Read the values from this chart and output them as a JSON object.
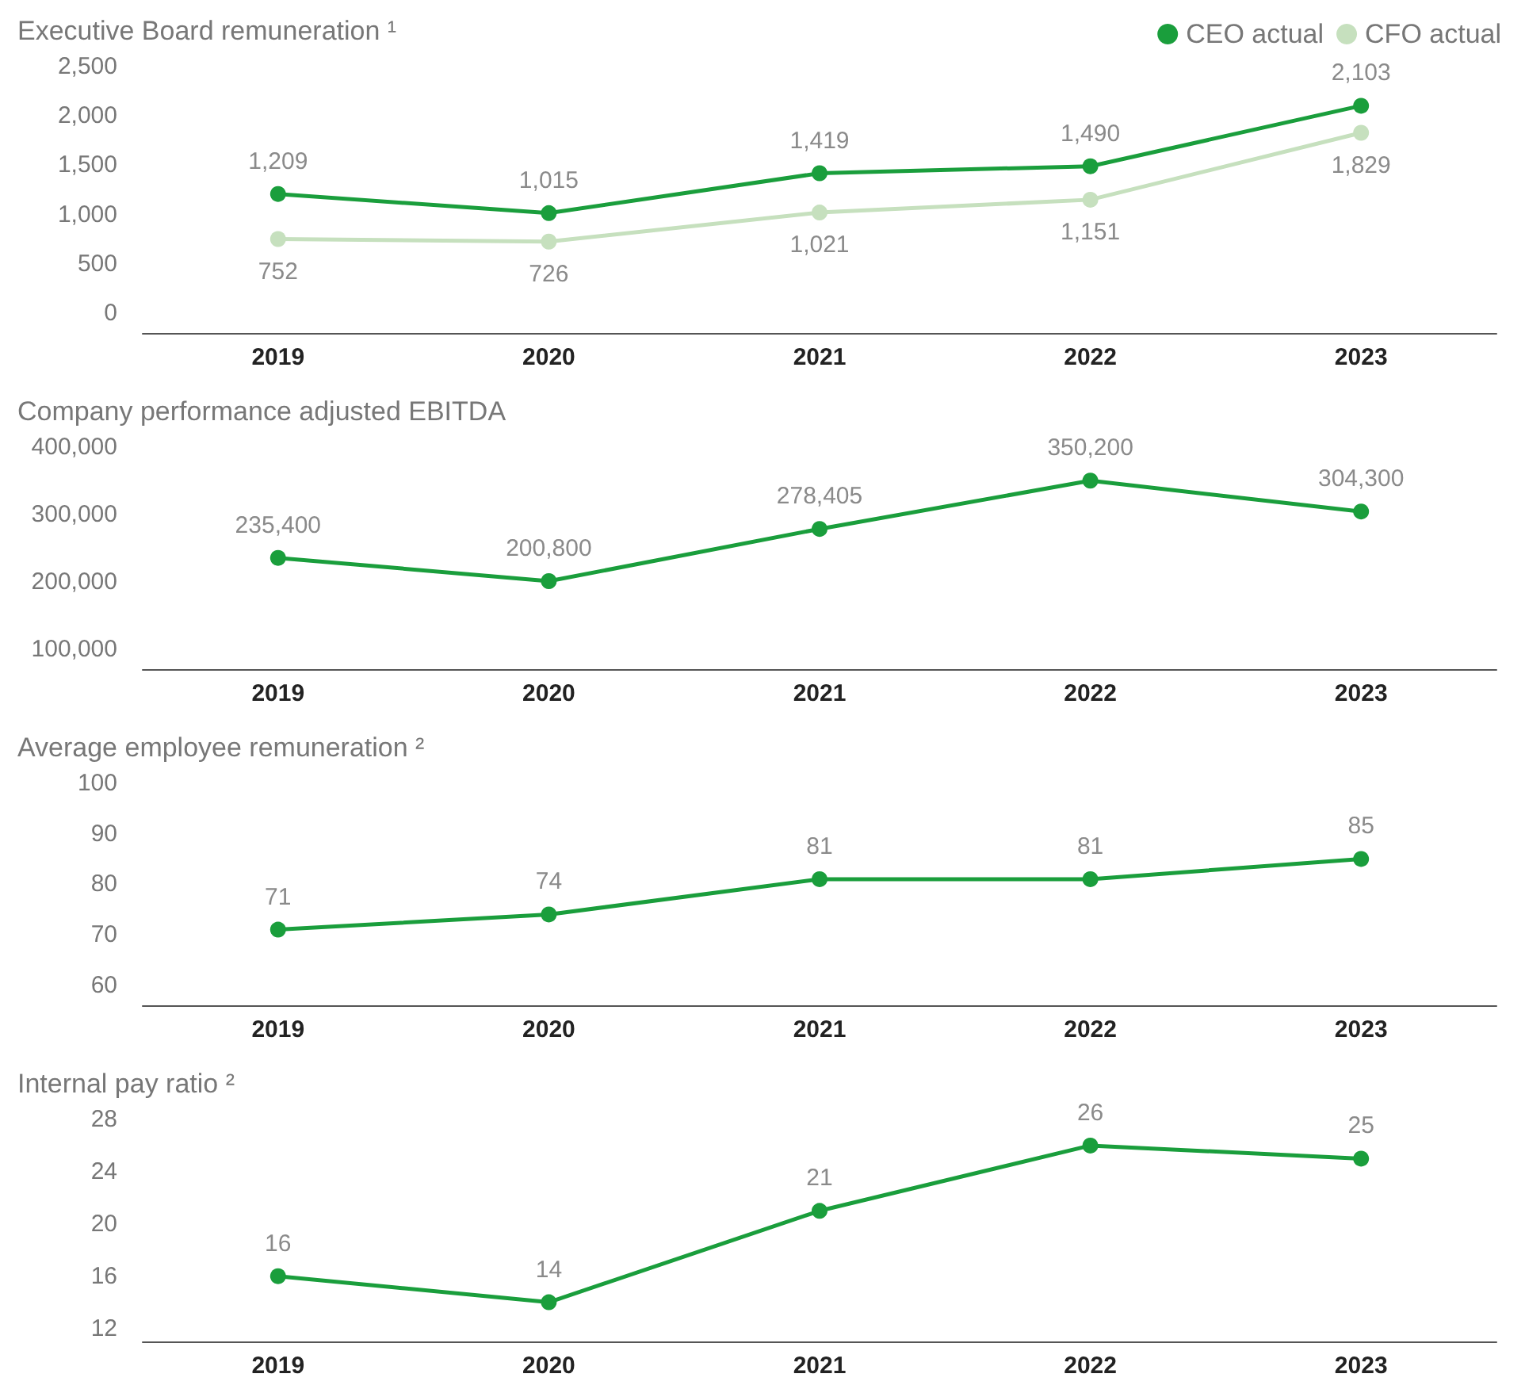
{
  "chart_data": [
    {
      "type": "line",
      "title": "Executive Board remuneration ¹",
      "categories": [
        "2019",
        "2020",
        "2021",
        "2022",
        "2023"
      ],
      "ylim": [
        -200,
        2500
      ],
      "yticks": [
        0,
        500,
        {
          "value": 1000,
          "label": "1,000"
        },
        {
          "value": 1500,
          "label": "1,500"
        },
        {
          "value": 2000,
          "label": "2,000"
        },
        {
          "value": 2500,
          "label": "2,500"
        }
      ],
      "legend": "top right",
      "marker": "circle",
      "line_style": "solid",
      "series": [
        {
          "name": "CEO actual",
          "color": "#1a9e3c",
          "values": [
            1209,
            1015,
            1419,
            1490,
            2103
          ],
          "value_labels": [
            "1,209",
            "1,015",
            "1,419",
            "1,490",
            "2,103"
          ]
        },
        {
          "name": "CFO actual",
          "color": "#c6e0be",
          "values": [
            752,
            726,
            1021,
            1151,
            1829
          ],
          "value_labels": [
            "752",
            "726",
            "1,021",
            "1,151",
            "1,829"
          ]
        }
      ]
    },
    {
      "type": "line",
      "title": "Company performance adjusted EBITDA",
      "categories": [
        "2019",
        "2020",
        "2021",
        "2022",
        "2023"
      ],
      "ylim": [
        70000,
        400000
      ],
      "yticks": [
        {
          "value": 100000,
          "label": "100,000"
        },
        {
          "value": 200000,
          "label": "200,000"
        },
        {
          "value": 300000,
          "label": "300,000"
        },
        {
          "value": 400000,
          "label": "400,000"
        }
      ],
      "marker": "circle",
      "line_style": "solid",
      "series": [
        {
          "color": "#1a9e3c",
          "values": [
            235400,
            200800,
            278405,
            350200,
            304300
          ],
          "value_labels": [
            "235,400",
            "200,800",
            "278,405",
            "350,200",
            "304,300"
          ]
        }
      ]
    },
    {
      "type": "line",
      "title": "Average employee remuneration ²",
      "categories": [
        "2019",
        "2020",
        "2021",
        "2022",
        "2023"
      ],
      "ylim": [
        56,
        100
      ],
      "yticks": [
        60,
        70,
        80,
        90,
        100
      ],
      "marker": "circle",
      "line_style": "solid",
      "series": [
        {
          "color": "#1a9e3c",
          "values": [
            71,
            74,
            81,
            81,
            85
          ],
          "value_labels": [
            "71",
            "74",
            "81",
            "81",
            "85"
          ]
        }
      ]
    },
    {
      "type": "line",
      "title": "Internal pay ratio ²",
      "categories": [
        "2019",
        "2020",
        "2021",
        "2022",
        "2023"
      ],
      "ylim": [
        11,
        28
      ],
      "yticks": [
        12,
        16,
        20,
        24,
        28
      ],
      "marker": "circle",
      "line_style": "solid",
      "series": [
        {
          "color": "#1a9e3c",
          "values": [
            16,
            14,
            21,
            26,
            25
          ],
          "value_labels": [
            "16",
            "14",
            "21",
            "26",
            "25"
          ]
        }
      ]
    }
  ]
}
